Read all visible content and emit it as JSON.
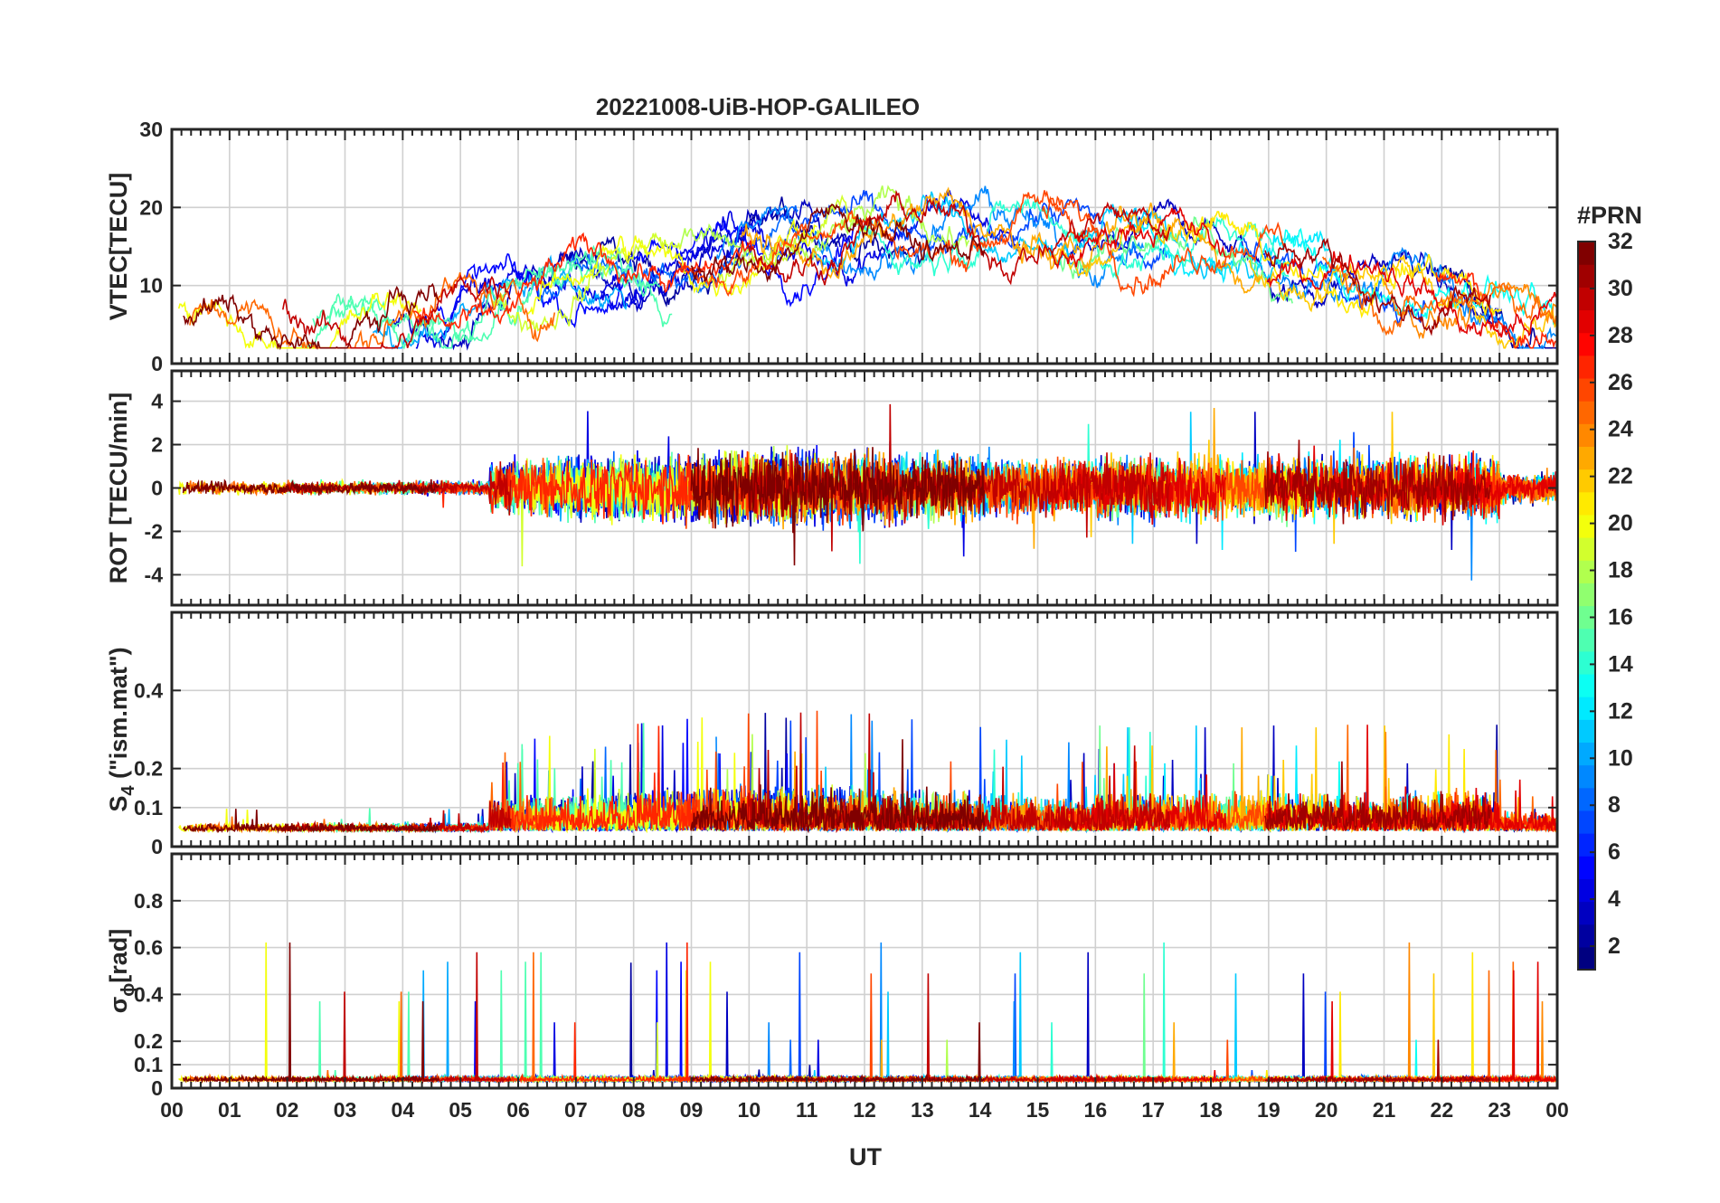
{
  "chart_data": [
    {
      "type": "line",
      "title": "20221008-UiB-HOP-GALILEO",
      "ylabel": "VTEC[TECU]",
      "ylim": [
        0,
        30
      ],
      "yticks": [
        "0",
        "10",
        "20",
        "30"
      ],
      "xlim": [
        0,
        24
      ],
      "shape": "vtec",
      "grid": true
    },
    {
      "type": "line",
      "ylabel": "ROT [TECU/min]",
      "ylim": [
        -5.4,
        5.4
      ],
      "yticks": [
        "-4",
        "-2",
        "0",
        "2",
        "4"
      ],
      "ytick_values": [
        -4,
        -2,
        0,
        2,
        4
      ],
      "xlim": [
        0,
        24
      ],
      "shape": "rot",
      "grid": true
    },
    {
      "type": "line",
      "ylabel_main": "S",
      "ylabel_sub": "4",
      "ylabel_tail": " (\"ism.mat\")",
      "ylim": [
        0,
        0.6
      ],
      "yticks": [
        "0",
        "0.1",
        "0.2",
        "0.4"
      ],
      "ytick_values": [
        0,
        0.1,
        0.2,
        0.4
      ],
      "xlim": [
        0,
        24
      ],
      "shape": "s4",
      "grid": true
    },
    {
      "type": "line",
      "ylabel_main": "σ",
      "ylabel_sub": "ϕ",
      "ylabel_tail": "[rad]",
      "ylim": [
        0,
        1.0
      ],
      "yticks": [
        "0",
        "0.1",
        "0.2",
        "0.4",
        "0.6",
        "0.8"
      ],
      "ytick_values": [
        0,
        0.1,
        0.2,
        0.4,
        0.6,
        0.8
      ],
      "xlim": [
        0,
        24
      ],
      "shape": "sigma",
      "grid": true
    }
  ],
  "xaxis": {
    "label": "UT",
    "ticks": [
      "00",
      "01",
      "02",
      "03",
      "04",
      "05",
      "06",
      "07",
      "08",
      "09",
      "10",
      "11",
      "12",
      "13",
      "14",
      "15",
      "16",
      "17",
      "18",
      "19",
      "20",
      "21",
      "22",
      "23",
      "00"
    ]
  },
  "colorbar": {
    "label": "#PRN",
    "range": [
      1,
      32
    ],
    "ticks": [
      "2",
      "4",
      "6",
      "8",
      "10",
      "12",
      "14",
      "16",
      "18",
      "20",
      "22",
      "24",
      "26",
      "28",
      "30",
      "32"
    ],
    "tick_values": [
      2,
      4,
      6,
      8,
      10,
      12,
      14,
      16,
      18,
      20,
      22,
      24,
      26,
      28,
      30,
      32
    ],
    "colormap": "jet"
  }
}
